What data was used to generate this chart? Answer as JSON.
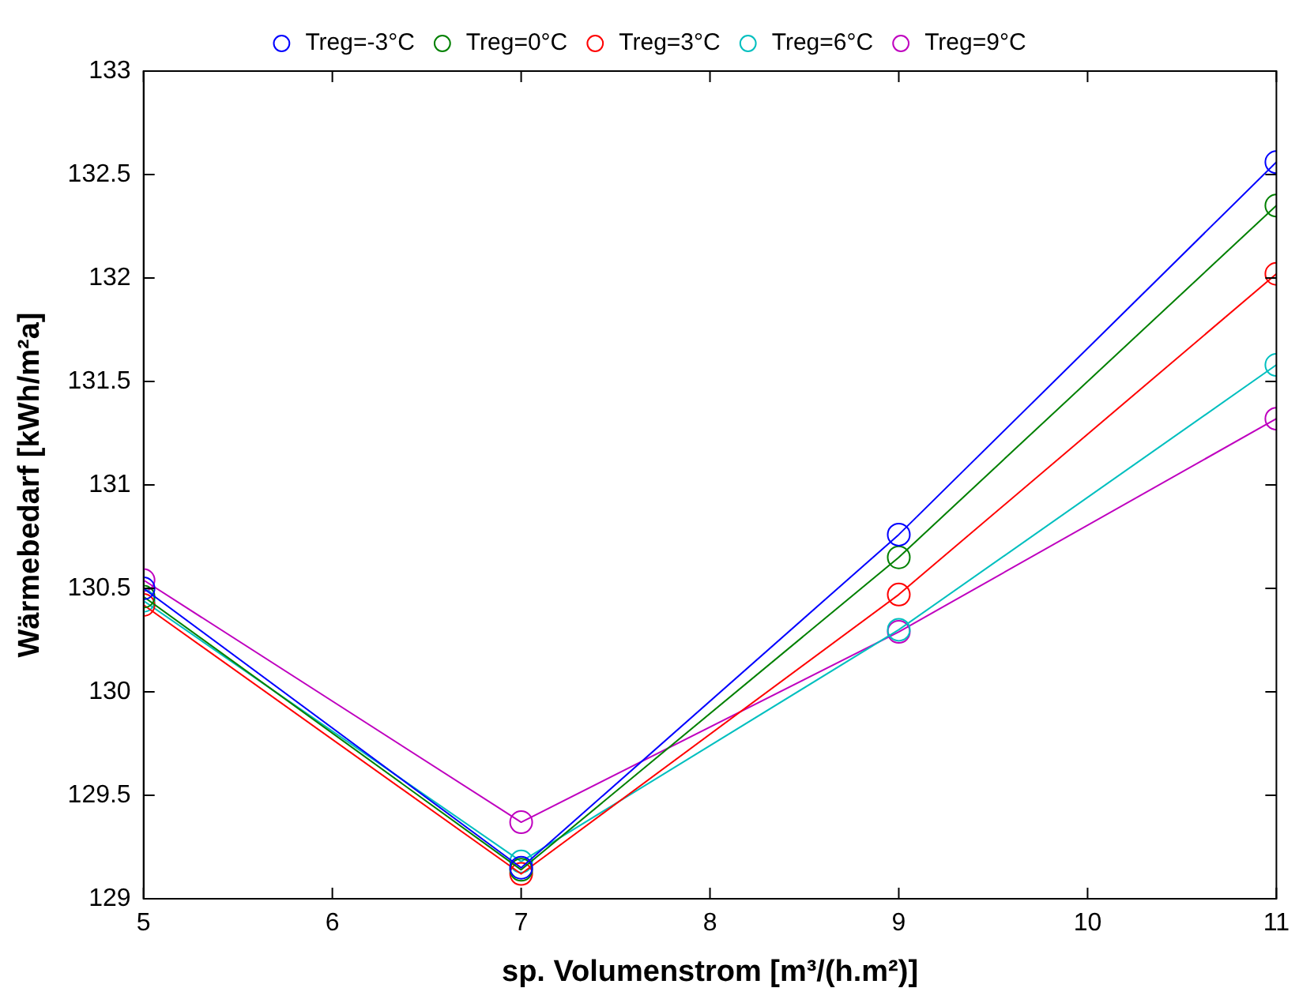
{
  "chart_data": {
    "type": "line",
    "xlabel": "sp. Volumenstrom [m³/(h.m²)]",
    "ylabel": "Wärmebedarf [kWh/m²a]",
    "x": [
      5,
      7,
      9,
      11
    ],
    "xlim": [
      5,
      11
    ],
    "xticks": [
      5,
      6,
      7,
      8,
      9,
      10,
      11
    ],
    "ylim": [
      129,
      133
    ],
    "yticks": [
      129,
      129.5,
      130,
      130.5,
      131,
      131.5,
      132,
      132.5,
      133
    ],
    "series": [
      {
        "name": "Treg=-3°C",
        "color": "#0000ff",
        "values": [
          130.5,
          129.15,
          130.76,
          132.56
        ]
      },
      {
        "name": "Treg=0°C",
        "color": "#008000",
        "values": [
          130.46,
          129.14,
          130.65,
          132.35
        ]
      },
      {
        "name": "Treg=3°C",
        "color": "#ff0000",
        "values": [
          130.42,
          129.12,
          130.47,
          132.02
        ]
      },
      {
        "name": "Treg=6°C",
        "color": "#00bfbf",
        "values": [
          130.44,
          129.18,
          130.3,
          131.58
        ]
      },
      {
        "name": "Treg=9°C",
        "color": "#bf00bf",
        "values": [
          130.54,
          129.37,
          130.29,
          131.32
        ]
      }
    ],
    "marker": "circle",
    "line_style": "solid",
    "grid": false,
    "legend": "top"
  }
}
